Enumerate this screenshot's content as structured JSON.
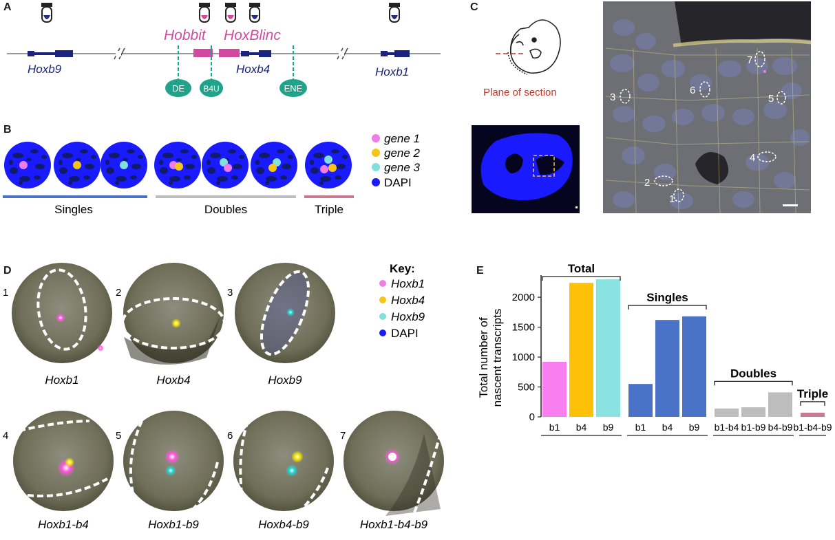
{
  "panel_letters": {
    "a": "A",
    "b": "B",
    "c": "C",
    "d": "D",
    "e": "E"
  },
  "panelA": {
    "genes": {
      "hoxb9": "Hoxb9",
      "hoxb4": "Hoxb4",
      "hoxb1": "Hoxb1"
    },
    "lncs": {
      "hobbit": "Hobbit",
      "hoxblinc": "HoxBlinc"
    },
    "enhancers": {
      "de": "DE",
      "b4u": "B4U",
      "ene": "ENE"
    },
    "colors": {
      "gene": "#1a237e",
      "lnc": "#d14aa0",
      "enhancer": "#1fa38a"
    }
  },
  "panelB": {
    "legend": {
      "gene1": "gene 1",
      "gene2": "gene 2",
      "gene3": "gene 3",
      "dapi": "DAPI"
    },
    "groups": {
      "singles": "Singles",
      "doubles": "Doubles",
      "triple": "Triple"
    },
    "colors": {
      "gene1": "#f27ce6",
      "gene2": "#f5c518",
      "gene3": "#7fe0dd",
      "dapi": "#1a1aff",
      "singles_bar": "#4a72c6",
      "doubles_bar": "#bdbdbd",
      "triple_bar": "#c97a92"
    }
  },
  "panelC": {
    "plane_label": "Plane of section",
    "cell_numbers": {
      "c1": "1",
      "c2": "2",
      "c3": "3",
      "c4": "4",
      "c5": "5",
      "c6": "6",
      "c7": "7"
    }
  },
  "panelD": {
    "key_title": "Key:",
    "key": {
      "hoxb1": "Hoxb1",
      "hoxb4": "Hoxb4",
      "hoxb9": "Hoxb9",
      "dapi": "DAPI"
    },
    "nuclei": [
      {
        "num": "1",
        "label": "Hoxb1"
      },
      {
        "num": "2",
        "label": "Hoxb4"
      },
      {
        "num": "3",
        "label": "Hoxb9"
      },
      {
        "num": "4",
        "label": "Hoxb1-b4"
      },
      {
        "num": "5",
        "label": "Hoxb1-b9"
      },
      {
        "num": "6",
        "label": "Hoxb4-b9"
      },
      {
        "num": "7",
        "label": "Hoxb1-b4-b9"
      }
    ]
  },
  "chart_data": {
    "type": "bar",
    "ylabel": "Total number of nascent transcripts",
    "ylim": [
      0,
      2300
    ],
    "yticks": [
      0,
      500,
      1000,
      1500,
      2000
    ],
    "groups": [
      {
        "name": "Total",
        "categories": [
          "b1",
          "b4",
          "b9"
        ],
        "values": [
          920,
          2240,
          2300
        ],
        "colors": [
          "#f97ff0",
          "#ffc107",
          "#8ae3e0"
        ]
      },
      {
        "name": "Singles",
        "categories": [
          "b1",
          "b4",
          "b9"
        ],
        "values": [
          550,
          1620,
          1680
        ],
        "colors": [
          "#4a72c6",
          "#4a72c6",
          "#4a72c6"
        ]
      },
      {
        "name": "Doubles",
        "categories": [
          "b1-b4",
          "b1-b9",
          "b4-b9"
        ],
        "values": [
          140,
          160,
          410
        ],
        "colors": [
          "#bdbdbd",
          "#bdbdbd",
          "#bdbdbd"
        ]
      },
      {
        "name": "Triple",
        "categories": [
          "b1-b4-b9"
        ],
        "values": [
          70
        ],
        "colors": [
          "#c97a92"
        ]
      }
    ]
  }
}
